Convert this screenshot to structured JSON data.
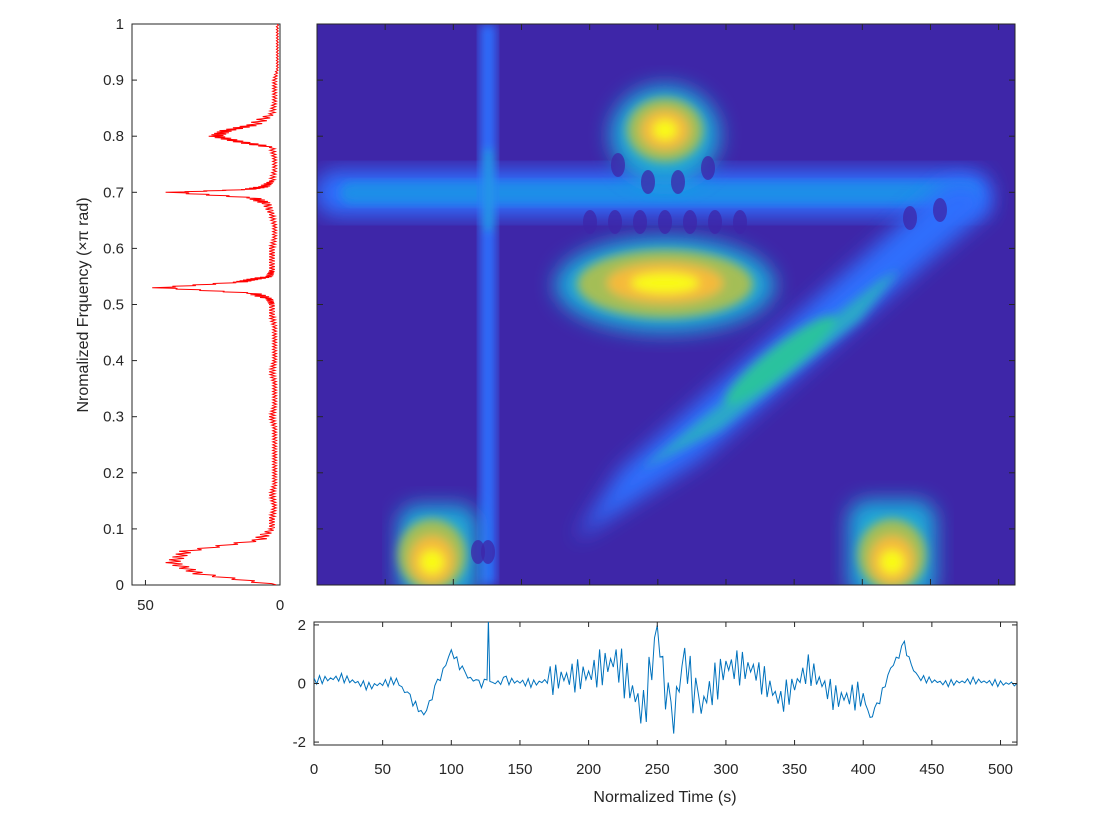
{
  "chart_data": [
    {
      "type": "line",
      "panel": "spectrum",
      "series": [
        {
          "color": "#ff0000",
          "y": [
            0.0,
            0.02,
            0.04,
            0.06,
            0.08,
            0.1,
            0.12,
            0.14,
            0.16,
            0.18,
            0.2,
            0.22,
            0.24,
            0.26,
            0.28,
            0.3,
            0.32,
            0.34,
            0.36,
            0.38,
            0.4,
            0.42,
            0.44,
            0.46,
            0.48,
            0.5,
            0.51,
            0.52,
            0.53,
            0.54,
            0.545,
            0.55,
            0.56,
            0.58,
            0.6,
            0.62,
            0.64,
            0.66,
            0.68,
            0.69,
            0.7,
            0.705,
            0.71,
            0.72,
            0.74,
            0.76,
            0.78,
            0.79,
            0.8,
            0.81,
            0.82,
            0.84,
            0.86,
            0.88,
            0.9,
            0.92,
            0.94,
            0.96,
            0.98,
            1.0
          ],
          "x": [
            1,
            30,
            40,
            35,
            8,
            3,
            3,
            2,
            3,
            2,
            2,
            2,
            2,
            2,
            2,
            3,
            2,
            2,
            2,
            3,
            2,
            2,
            2,
            2,
            3,
            3,
            4,
            10,
            45,
            15,
            10,
            4,
            3,
            3,
            3,
            2,
            2,
            3,
            5,
            10,
            40,
            12,
            6,
            3,
            2,
            2,
            3,
            15,
            24,
            20,
            10,
            3,
            2,
            2,
            2,
            1,
            1,
            1,
            1,
            1
          ]
        }
      ],
      "xlim": [
        55,
        0
      ],
      "ylim": [
        0,
        1
      ],
      "xticks": [
        "50",
        "0"
      ],
      "yticks": [
        "0",
        "0.1",
        "0.2",
        "0.3",
        "0.4",
        "0.5",
        "0.6",
        "0.7",
        "0.8",
        "0.9",
        "1"
      ],
      "ylabel": "Nromalized Frquency (×π rad)"
    },
    {
      "type": "heatmap",
      "panel": "time-frequency",
      "xlim": [
        0,
        512
      ],
      "ylim": [
        0,
        1
      ],
      "background": "#3e26a8",
      "components": [
        {
          "name": "low-freq-burst-1",
          "t": 90,
          "f": 0.04,
          "peak": 1.0
        },
        {
          "name": "low-freq-burst-2",
          "t": 420,
          "f": 0.04,
          "peak": 0.95
        },
        {
          "name": "chirp",
          "t_start": 190,
          "f_start": 0.08,
          "t_end": 480,
          "f_end": 0.68,
          "peak": 0.55
        },
        {
          "name": "tone-0.7",
          "t_start": 0,
          "t_end": 490,
          "f": 0.7,
          "peak": 0.45
        },
        {
          "name": "impulse",
          "t": 128,
          "f_start": 0.0,
          "f_end": 1.0,
          "peak": 0.4
        },
        {
          "name": "burst-0.53",
          "t": 255,
          "f": 0.53,
          "peak": 1.0
        },
        {
          "name": "burst-0.8",
          "t": 255,
          "f": 0.8,
          "peak": 0.95
        }
      ],
      "colormap": [
        "#3e26a8",
        "#2f6efd",
        "#1ba8d9",
        "#2ac29e",
        "#a4be57",
        "#f5ba3b",
        "#f9fb15"
      ]
    },
    {
      "type": "line",
      "panel": "time-signal",
      "series": [
        {
          "color": "#0072bd",
          "x": [
            0,
            20,
            40,
            60,
            70,
            80,
            90,
            100,
            110,
            120,
            126,
            127,
            128,
            129,
            130,
            140,
            160,
            180,
            200,
            220,
            240,
            250,
            260,
            270,
            280,
            300,
            320,
            340,
            360,
            380,
            400,
            405,
            410,
            420,
            430,
            435,
            440,
            460,
            480,
            500,
            512
          ],
          "y": [
            0.1,
            0.2,
            -0.1,
            0.1,
            -0.5,
            -1.1,
            0.0,
            1.1,
            0.3,
            0.0,
            0.0,
            2.1,
            0.0,
            0.0,
            0.0,
            0.1,
            0.0,
            0.2,
            0.3,
            0.8,
            -1.0,
            1.8,
            -1.5,
            0.9,
            -0.9,
            0.6,
            0.5,
            -0.6,
            0.5,
            -0.5,
            -0.4,
            -1.2,
            -0.8,
            0.5,
            1.3,
            0.6,
            0.2,
            0.0,
            0.1,
            0.0,
            0.0
          ]
        }
      ],
      "xlim": [
        0,
        512
      ],
      "ylim": [
        -2.1,
        2.1
      ],
      "xticks": [
        "0",
        "50",
        "100",
        "150",
        "200",
        "250",
        "300",
        "350",
        "400",
        "450",
        "500"
      ],
      "yticks": [
        "-2",
        "0",
        "2"
      ],
      "xlabel": "Normalized Time (s)"
    }
  ],
  "labels": {
    "spec_y_axis": "Nromalized Frquency (×π rad)",
    "time_x_axis": "Normalized Time (s)"
  }
}
